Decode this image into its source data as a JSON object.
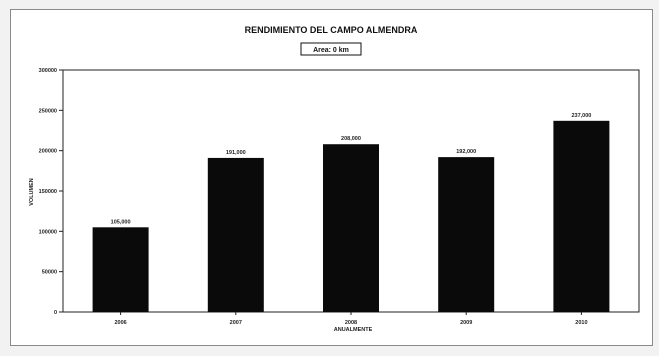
{
  "chart_data": {
    "type": "bar",
    "title": "RENDIMIENTO DEL CAMPO ALMENDRA",
    "subtitle": "Area: 0 km",
    "xlabel": "ANUALMENTE",
    "ylabel": "VOLUMEN",
    "categories": [
      "2006",
      "2007",
      "2008",
      "2009",
      "2010"
    ],
    "values": [
      105000,
      191000,
      208000,
      192000,
      237000
    ],
    "data_labels": [
      "105,000",
      "191,000",
      "208,000",
      "192,000",
      "237,000"
    ],
    "ylim": [
      0,
      300000
    ],
    "yticks": [
      0,
      50000,
      100000,
      150000,
      200000,
      250000,
      300000
    ],
    "ytick_labels": [
      "0",
      "50000",
      "100000",
      "150000",
      "200000",
      "250000",
      "300000"
    ],
    "bar_color": "#0a0a0a",
    "grid": false,
    "legend": "none"
  }
}
